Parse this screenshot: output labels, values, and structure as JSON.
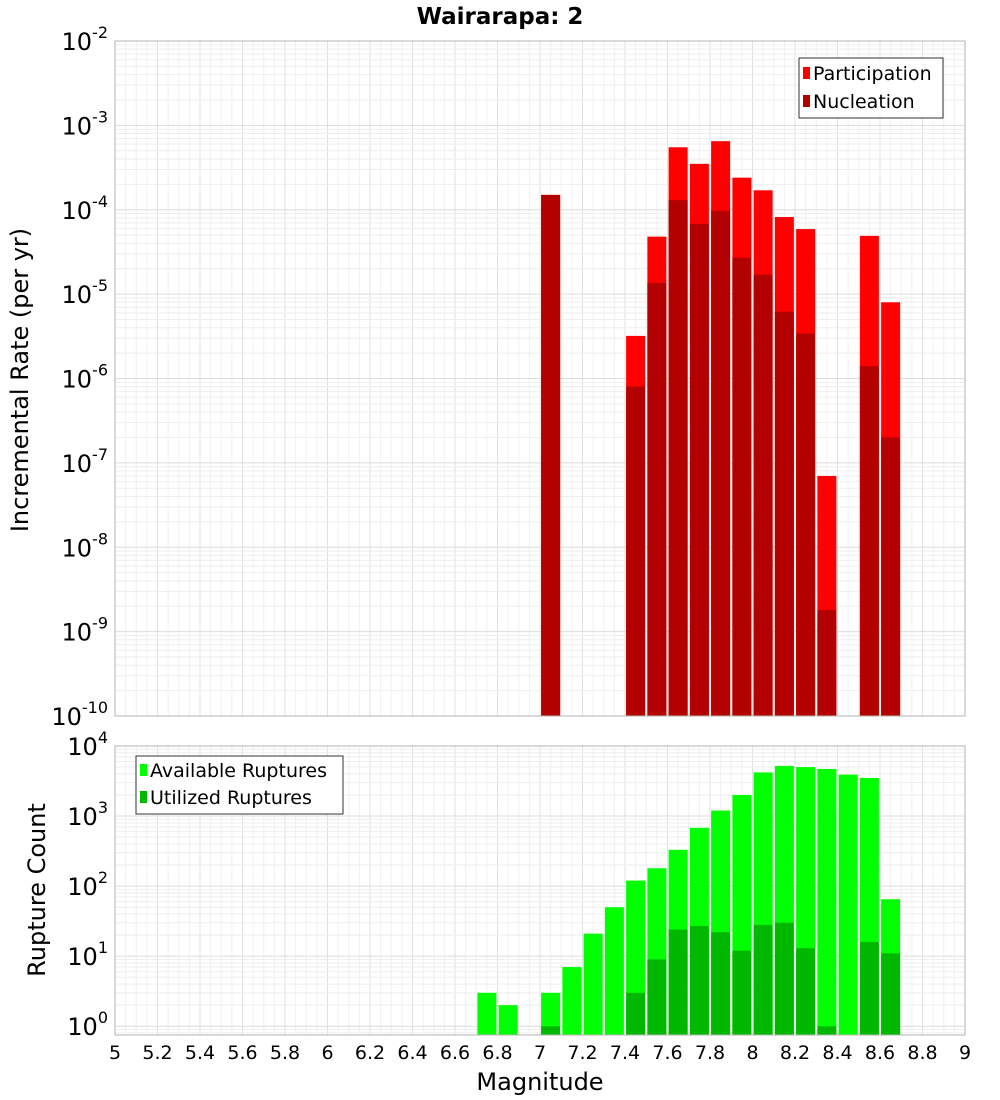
{
  "chart_data": [
    {
      "type": "bar",
      "title": "Wairarapa: 2",
      "xlabel": "Magnitude",
      "ylabel": "Incremental Rate (per yr)",
      "yscale": "log",
      "ylim": [
        1e-10,
        0.01
      ],
      "xlim": [
        5,
        9
      ],
      "ytick_exponents": [
        "-2",
        "-3",
        "-4",
        "-5",
        "-6",
        "-7",
        "-8",
        "-9",
        "-10"
      ],
      "ytick_base": "10",
      "legend": {
        "position": "top-right",
        "entries": [
          "Participation",
          "Nucleation"
        ]
      },
      "series": [
        {
          "name": "Participation",
          "color": "#ff0000",
          "x": [
            7.05,
            7.45,
            7.55,
            7.65,
            7.75,
            7.85,
            7.95,
            8.05,
            8.15,
            8.25,
            8.35,
            8.55,
            8.65
          ],
          "values": [
            0.00015,
            3.2e-06,
            4.8e-05,
            0.00055,
            0.00035,
            0.00065,
            0.00024,
            0.00017,
            8.2e-05,
            5.9e-05,
            7e-08,
            4.9e-05,
            8e-06
          ]
        },
        {
          "name": "Nucleation",
          "color": "#b30000",
          "x": [
            7.05,
            7.45,
            7.55,
            7.65,
            7.75,
            7.85,
            7.95,
            8.05,
            8.15,
            8.25,
            8.35,
            8.55,
            8.65
          ],
          "values": [
            0.00015,
            8e-07,
            1.35e-05,
            0.00013,
            6.8e-05,
            9.7e-05,
            2.7e-05,
            1.7e-05,
            6.2e-06,
            3.4e-06,
            1.8e-09,
            1.4e-06,
            2e-07
          ]
        }
      ]
    },
    {
      "type": "bar",
      "xlabel": "Magnitude",
      "ylabel": "Rupture Count",
      "yscale": "log",
      "ylim": [
        0.75,
        10000
      ],
      "xlim": [
        5,
        9
      ],
      "ytick_exponents": [
        "4",
        "3",
        "2",
        "1",
        "0"
      ],
      "ytick_base": "10",
      "xticks": [
        "5",
        "5.2",
        "5.4",
        "5.6",
        "5.8",
        "6",
        "6.2",
        "6.4",
        "6.6",
        "6.8",
        "7",
        "7.2",
        "7.4",
        "7.6",
        "7.8",
        "8",
        "8.2",
        "8.4",
        "8.6",
        "8.8",
        "9"
      ],
      "legend": {
        "position": "top-left",
        "entries": [
          "Available Ruptures",
          "Utilized Ruptures"
        ]
      },
      "series": [
        {
          "name": "Available Ruptures",
          "color": "#00ff00",
          "x": [
            6.75,
            6.85,
            7.05,
            7.15,
            7.25,
            7.35,
            7.45,
            7.55,
            7.65,
            7.75,
            7.85,
            7.95,
            8.05,
            8.15,
            8.25,
            8.35,
            8.45,
            8.55,
            8.65
          ],
          "values": [
            3,
            2,
            3,
            7,
            21,
            50,
            120,
            180,
            330,
            680,
            1200,
            2000,
            4200,
            5200,
            5000,
            4700,
            3900,
            3500,
            65
          ]
        },
        {
          "name": "Utilized Ruptures",
          "color": "#00b800",
          "x": [
            7.05,
            7.45,
            7.55,
            7.65,
            7.75,
            7.85,
            7.95,
            8.05,
            8.15,
            8.25,
            8.35,
            8.55,
            8.65
          ],
          "values": [
            1,
            3,
            9,
            24,
            27,
            22,
            12,
            28,
            30,
            13,
            1,
            16,
            11
          ]
        }
      ]
    }
  ]
}
